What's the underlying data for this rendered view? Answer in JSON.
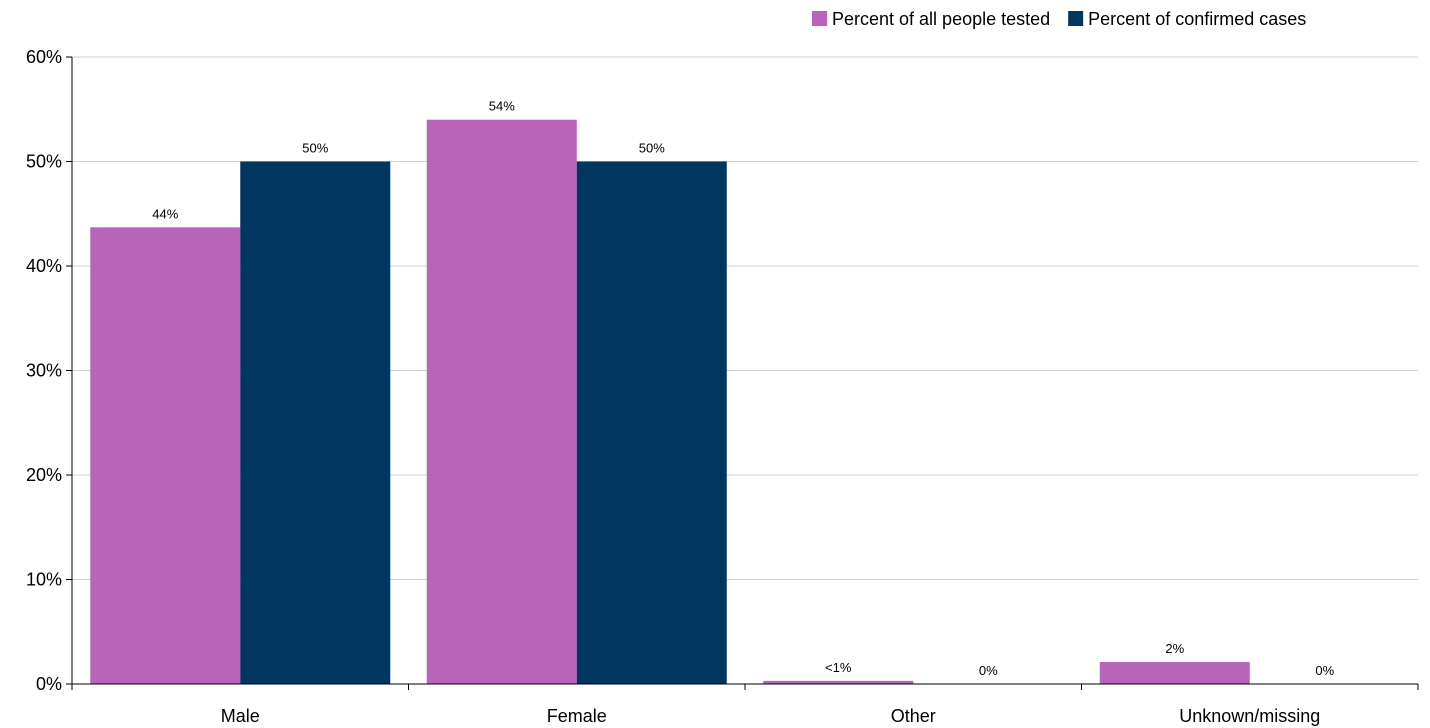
{
  "chart_data": {
    "type": "bar",
    "title": "",
    "xlabel": "",
    "ylabel": "",
    "categories": [
      "Male",
      "Female",
      "Other",
      "Unknown/missing"
    ],
    "series": [
      {
        "name": "Percent of all people tested",
        "color": "#b864b9",
        "values": [
          43.7,
          54.0,
          0.3,
          2.1
        ],
        "labels": [
          "44%",
          "54%",
          "<1%",
          "2%"
        ]
      },
      {
        "name": "Percent of confirmed cases",
        "color": "#003660",
        "values": [
          50.0,
          50.0,
          0.0,
          0.0
        ],
        "labels": [
          "50%",
          "50%",
          "0%",
          "0%"
        ]
      }
    ],
    "ylim": [
      0,
      60
    ],
    "yticks": [
      0,
      10,
      20,
      30,
      40,
      50,
      60
    ],
    "ytick_labels": [
      "0%",
      "10%",
      "20%",
      "30%",
      "40%",
      "50%",
      "60%"
    ],
    "grid": true,
    "legend_position": "top-right"
  }
}
